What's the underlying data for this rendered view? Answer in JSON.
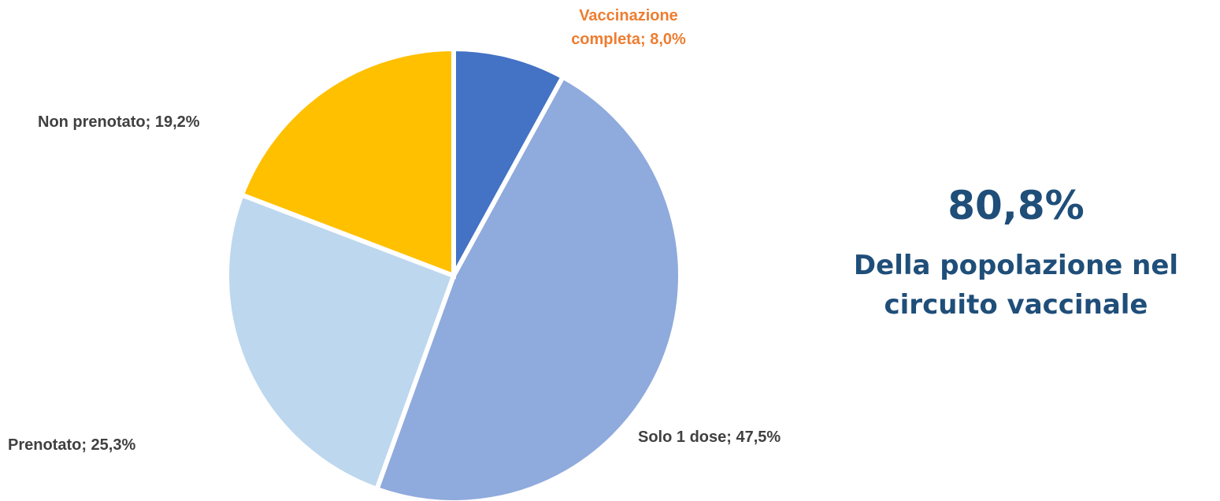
{
  "chart_data": {
    "type": "pie",
    "values": [
      8.0,
      47.5,
      25.3,
      19.2
    ],
    "value_labels": [
      "Vaccinazione completa; 8,0%",
      "Solo 1 dose; 47,5%",
      "Prenotato; 25,3%",
      "Non prenotato; 19,2%"
    ],
    "colors": [
      "#4472c4",
      "#8faadc",
      "#bdd7ee",
      "#ffc000"
    ],
    "value_label_colors": [
      "#ed7d31",
      "#404040",
      "#404040",
      "#404040"
    ],
    "annotations": [
      "80,8%",
      "Della popolazione nel circuito vaccinale"
    ]
  }
}
